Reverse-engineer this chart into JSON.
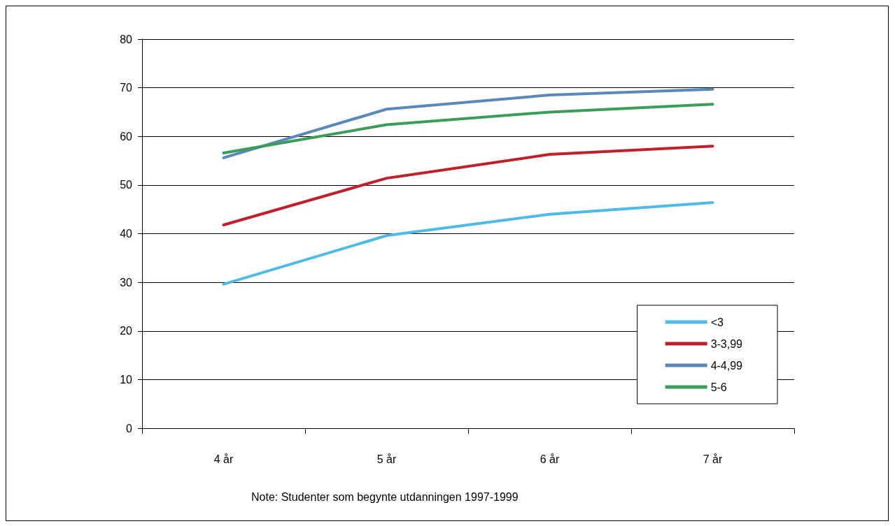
{
  "chart_data": {
    "type": "line",
    "categories": [
      "4 år",
      "5 år",
      "6 år",
      "7 år"
    ],
    "series": [
      {
        "name": "<3",
        "color": "#4dbbe6",
        "values": [
          29.6,
          39.6,
          44,
          46.4
        ]
      },
      {
        "name": "3-3,99",
        "color": "#c0202a",
        "values": [
          41.8,
          51.4,
          56.3,
          58
        ]
      },
      {
        "name": "4-4,99",
        "color": "#5b88b9",
        "values": [
          55.6,
          65.6,
          68.5,
          69.7
        ]
      },
      {
        "name": "5-6",
        "color": "#3c9c5c",
        "values": [
          56.6,
          62.4,
          65,
          66.6
        ]
      }
    ],
    "ylim": [
      0,
      80
    ],
    "yticks": [
      0,
      10,
      20,
      30,
      40,
      50,
      60,
      70,
      80
    ],
    "grid": "y",
    "legend": "bottom right",
    "marker": "none",
    "line_style": "solid",
    "annotations": [
      "Note: Studenter som begynte utdanningen 1997-1999"
    ]
  }
}
